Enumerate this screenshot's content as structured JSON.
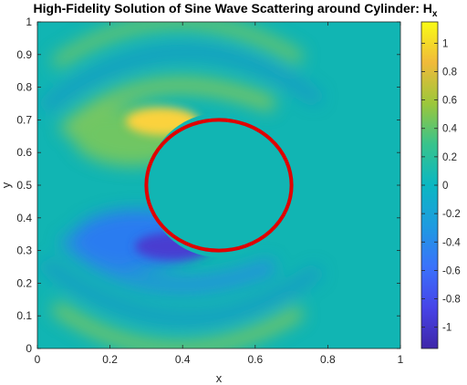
{
  "chart_data": {
    "type": "heatmap",
    "title_main": "High-Fidelity Solution of Sine Wave Scattering around Cylinder: H",
    "title_sub": "x",
    "xlabel": "x",
    "ylabel": "y",
    "xlim": [
      0,
      1
    ],
    "ylim": [
      0,
      1
    ],
    "x_ticks": [
      "0",
      "0.2",
      "0.4",
      "0.6",
      "0.8",
      "1"
    ],
    "y_ticks": [
      "0",
      "0.1",
      "0.2",
      "0.3",
      "0.4",
      "0.5",
      "0.6",
      "0.7",
      "0.8",
      "0.9",
      "1"
    ],
    "colorbar": {
      "colormap": "parula",
      "range": [
        -1.15,
        1.15
      ],
      "ticks": [
        {
          "value": 1,
          "label": "1"
        },
        {
          "value": 0.8,
          "label": "0.8"
        },
        {
          "value": 0.6,
          "label": "0.6"
        },
        {
          "value": 0.4,
          "label": "0.4"
        },
        {
          "value": 0.2,
          "label": "0.2"
        },
        {
          "value": 0,
          "label": "0"
        },
        {
          "value": -0.2,
          "label": "-0.2"
        },
        {
          "value": -0.4,
          "label": "-0.4"
        },
        {
          "value": -0.6,
          "label": "-0.6"
        },
        {
          "value": -0.8,
          "label": "-0.8"
        },
        {
          "value": -1,
          "label": "-1"
        }
      ]
    },
    "cylinder": {
      "center": [
        0.5,
        0.5
      ],
      "radius": 0.2,
      "color": "#e00000"
    },
    "field_features": [
      {
        "center": [
          0.38,
          0.685
        ],
        "value": 0.9
      },
      {
        "center": [
          0.39,
          0.315
        ],
        "value": -1.1
      },
      {
        "center": [
          0.27,
          0.605
        ],
        "value": 0.45
      },
      {
        "center": [
          0.27,
          0.395
        ],
        "value": -0.45
      }
    ]
  }
}
